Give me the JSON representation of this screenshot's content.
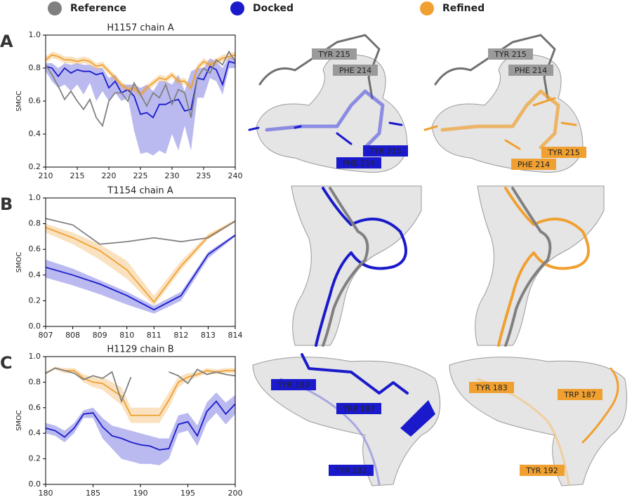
{
  "chart_data": [
    {
      "type": "line",
      "panel": "A",
      "title": "H1157 chain A",
      "ylabel": "SMOC",
      "x": [
        210,
        211,
        212,
        213,
        214,
        215,
        216,
        217,
        218,
        219,
        220,
        221,
        222,
        223,
        224,
        225,
        226,
        227,
        228,
        229,
        230,
        231,
        232,
        233,
        234,
        235,
        236,
        237,
        238,
        239,
        240
      ],
      "xlim": [
        210,
        240
      ],
      "xticks": [
        210,
        215,
        220,
        225,
        230,
        235,
        240
      ],
      "ylim": [
        0.2,
        1.0
      ],
      "yticks": [
        0.2,
        0.4,
        0.6,
        0.8,
        {
          "value": 1.0,
          "label": "1.0"
        }
      ],
      "series": [
        {
          "name": "Reference",
          "color": "#808080",
          "values": [
            0.82,
            0.76,
            0.69,
            0.61,
            0.66,
            0.6,
            0.55,
            0.61,
            0.5,
            0.45,
            0.6,
            0.65,
            0.65,
            0.6,
            0.71,
            0.64,
            0.57,
            0.65,
            0.62,
            0.7,
            0.58,
            0.67,
            0.65,
            0.5,
            0.74,
            0.8,
            0.77,
            0.85,
            0.82,
            0.9,
            0.84
          ]
        },
        {
          "name": "Docked",
          "color": "#1a1acc",
          "values": [
            0.81,
            0.8,
            0.75,
            0.8,
            0.77,
            0.79,
            0.78,
            0.78,
            0.76,
            0.77,
            0.68,
            0.72,
            0.65,
            0.67,
            0.63,
            0.52,
            0.53,
            0.5,
            0.58,
            0.58,
            0.6,
            0.61,
            0.54,
            0.55,
            0.74,
            0.73,
            0.81,
            0.79,
            0.7,
            0.84,
            0.83
          ],
          "lower": [
            0.78,
            0.72,
            0.68,
            0.7,
            0.66,
            0.7,
            0.64,
            0.71,
            0.6,
            0.66,
            0.6,
            0.65,
            0.6,
            0.62,
            0.42,
            0.28,
            0.29,
            0.27,
            0.3,
            0.28,
            0.4,
            0.3,
            0.45,
            0.3,
            0.62,
            0.62,
            0.74,
            0.72,
            0.64,
            0.8,
            0.8
          ],
          "upper": [
            0.83,
            0.83,
            0.8,
            0.83,
            0.82,
            0.83,
            0.82,
            0.82,
            0.8,
            0.8,
            0.74,
            0.76,
            0.7,
            0.7,
            0.7,
            0.68,
            0.7,
            0.66,
            0.72,
            0.72,
            0.7,
            0.76,
            0.66,
            0.78,
            0.8,
            0.8,
            0.86,
            0.84,
            0.8,
            0.87,
            0.86
          ]
        },
        {
          "name": "Refined",
          "color": "#f0a030",
          "values": [
            0.85,
            0.88,
            0.87,
            0.85,
            0.85,
            0.84,
            0.85,
            0.84,
            0.81,
            0.82,
            0.78,
            0.74,
            0.7,
            0.67,
            0.68,
            0.64,
            0.68,
            0.71,
            0.74,
            0.73,
            0.76,
            0.72,
            0.72,
            0.68,
            0.8,
            0.84,
            0.82,
            0.84,
            0.86,
            0.87,
            0.88
          ],
          "lower": [
            0.83,
            0.86,
            0.85,
            0.83,
            0.83,
            0.82,
            0.83,
            0.82,
            0.79,
            0.8,
            0.76,
            0.72,
            0.68,
            0.65,
            0.66,
            0.62,
            0.66,
            0.69,
            0.72,
            0.71,
            0.74,
            0.7,
            0.7,
            0.66,
            0.78,
            0.82,
            0.8,
            0.82,
            0.84,
            0.85,
            0.86
          ],
          "upper": [
            0.87,
            0.9,
            0.89,
            0.87,
            0.87,
            0.86,
            0.87,
            0.86,
            0.83,
            0.84,
            0.8,
            0.76,
            0.72,
            0.69,
            0.7,
            0.66,
            0.7,
            0.73,
            0.76,
            0.75,
            0.78,
            0.74,
            0.74,
            0.7,
            0.82,
            0.86,
            0.84,
            0.86,
            0.88,
            0.89,
            0.9
          ]
        }
      ]
    },
    {
      "type": "line",
      "panel": "B",
      "title": "T1154 chain A",
      "ylabel": "SMOC",
      "x": [
        807,
        808,
        809,
        810,
        811,
        812,
        813,
        814
      ],
      "xlim": [
        807,
        814
      ],
      "xticks": [
        807,
        808,
        809,
        810,
        811,
        812,
        813,
        814
      ],
      "ylim": [
        0,
        1.0
      ],
      "yticks": [
        {
          "value": 0,
          "label": "0.0"
        },
        0.2,
        0.4,
        0.6,
        0.8,
        {
          "value": 1.0,
          "label": "1.0"
        }
      ],
      "series": [
        {
          "name": "Reference",
          "color": "#808080",
          "values": [
            0.84,
            0.79,
            0.64,
            0.66,
            0.69,
            0.66,
            0.69,
            0.82
          ]
        },
        {
          "name": "Docked",
          "color": "#1a1acc",
          "values": [
            0.46,
            0.4,
            0.33,
            0.24,
            0.13,
            0.24,
            0.56,
            0.71
          ],
          "lower": [
            0.38,
            0.32,
            0.25,
            0.17,
            0.1,
            0.2,
            0.53,
            0.7
          ],
          "upper": [
            0.52,
            0.45,
            0.36,
            0.27,
            0.16,
            0.27,
            0.58,
            0.72
          ]
        },
        {
          "name": "Refined",
          "color": "#f0a030",
          "values": [
            0.77,
            0.69,
            0.59,
            0.44,
            0.19,
            0.47,
            0.7,
            0.82
          ],
          "lower": [
            0.73,
            0.64,
            0.52,
            0.37,
            0.16,
            0.44,
            0.68,
            0.81
          ],
          "upper": [
            0.8,
            0.73,
            0.64,
            0.51,
            0.24,
            0.51,
            0.72,
            0.83
          ]
        }
      ]
    },
    {
      "type": "line",
      "panel": "C",
      "title": "H1129 chain B",
      "ylabel": "SMOC",
      "x": [
        180,
        181,
        182,
        183,
        184,
        185,
        186,
        187,
        188,
        189,
        190,
        191,
        192,
        193,
        194,
        195,
        196,
        197,
        198,
        199,
        200
      ],
      "xlim": [
        180,
        200
      ],
      "xticks": [
        180,
        185,
        190,
        195,
        200
      ],
      "ylim": [
        0,
        1.0
      ],
      "yticks": [
        {
          "value": 0,
          "label": "0.0"
        },
        0.2,
        0.4,
        0.6,
        0.8,
        {
          "value": 1.0,
          "label": "1.0"
        }
      ],
      "series": [
        {
          "name": "Reference",
          "color": "#808080",
          "values": [
            0.87,
            0.91,
            0.89,
            0.87,
            0.82,
            0.85,
            0.83,
            0.88,
            0.65,
            0.84,
            null,
            null,
            null,
            0.88,
            0.85,
            0.79,
            0.9,
            0.86,
            0.88,
            0.86,
            0.85
          ]
        },
        {
          "name": "Docked",
          "color": "#1a1acc",
          "values": [
            0.44,
            0.42,
            0.37,
            0.44,
            0.55,
            0.56,
            0.45,
            0.38,
            0.36,
            0.33,
            0.31,
            0.3,
            0.27,
            0.28,
            0.47,
            0.49,
            0.38,
            0.57,
            0.65,
            0.55,
            0.63
          ],
          "lower": [
            0.4,
            0.38,
            0.33,
            0.4,
            0.52,
            0.52,
            0.36,
            0.28,
            0.2,
            0.18,
            0.16,
            0.16,
            0.15,
            0.2,
            0.4,
            0.42,
            0.3,
            0.48,
            0.56,
            0.47,
            0.55
          ],
          "upper": [
            0.48,
            0.46,
            0.42,
            0.48,
            0.58,
            0.6,
            0.52,
            0.46,
            0.44,
            0.42,
            0.4,
            0.38,
            0.36,
            0.36,
            0.54,
            0.56,
            0.46,
            0.64,
            0.72,
            0.64,
            0.7
          ]
        },
        {
          "name": "Refined",
          "color": "#f0a030",
          "values": [
            0.87,
            0.91,
            0.89,
            0.89,
            0.83,
            0.8,
            0.79,
            0.74,
            0.69,
            0.54,
            0.54,
            0.54,
            0.54,
            0.66,
            0.8,
            0.84,
            0.86,
            0.89,
            0.88,
            0.89,
            0.89
          ],
          "lower": [
            0.86,
            0.9,
            0.87,
            0.87,
            0.8,
            0.76,
            0.74,
            0.68,
            0.62,
            0.48,
            0.48,
            0.48,
            0.48,
            0.6,
            0.76,
            0.81,
            0.84,
            0.87,
            0.86,
            0.87,
            0.87
          ],
          "upper": [
            0.88,
            0.92,
            0.91,
            0.91,
            0.86,
            0.84,
            0.84,
            0.8,
            0.76,
            0.6,
            0.6,
            0.6,
            0.6,
            0.72,
            0.84,
            0.87,
            0.88,
            0.91,
            0.9,
            0.91,
            0.91
          ]
        }
      ]
    }
  ],
  "structure_labels": [
    {
      "text": "TYR 215",
      "color": "#9a9a9a"
    },
    {
      "text": "PHE 214",
      "color": "#9a9a9a"
    },
    {
      "text": "TYR 215",
      "color": "#1a1acc"
    },
    {
      "text": "PHE 214",
      "color": "#1a1acc"
    },
    {
      "text": "TYR 215",
      "color": "#9a9a9a"
    },
    {
      "text": "PHE 214",
      "color": "#9a9a9a"
    },
    {
      "text": "TYR 215",
      "color": "#f0a030"
    },
    {
      "text": "PHE 214",
      "color": "#f0a030"
    },
    {
      "text": "TYR 183",
      "color": "#1a1acc"
    },
    {
      "text": "TRP 187",
      "color": "#1a1acc"
    },
    {
      "text": "TYR 192",
      "color": "#1a1acc"
    },
    {
      "text": "TYR 183",
      "color": "#f0a030"
    },
    {
      "text": "TRP 187",
      "color": "#f0a030"
    },
    {
      "text": "TYR 192",
      "color": "#f0a030"
    }
  ]
}
